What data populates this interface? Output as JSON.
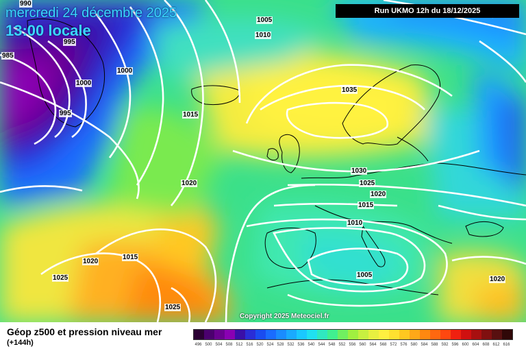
{
  "header": {
    "date": "mercredi 24 décembre 2025",
    "time": "13:00 locale",
    "run": "Run UKMO 12h du 18/12/2025"
  },
  "copyright": "Copyright 2025 Meteociel.fr",
  "footer": {
    "title": "Géop z500 et pression niveau mer",
    "subtitle": "(+144h)"
  },
  "isobar_labels": [
    "990",
    "995",
    "985",
    "1000",
    "995",
    "1000",
    "1005",
    "1010",
    "1015",
    "1035",
    "1020",
    "1030",
    "1025",
    "1020",
    "1015",
    "1010",
    "1020",
    "1015",
    "1025",
    "1005",
    "1025",
    "1020"
  ],
  "legend": {
    "values": [
      "496",
      "500",
      "504",
      "508",
      "512",
      "516",
      "520",
      "524",
      "528",
      "532",
      "536",
      "540",
      "544",
      "548",
      "552",
      "556",
      "560",
      "564",
      "568",
      "572",
      "576",
      "580",
      "584",
      "588",
      "592",
      "596",
      "600",
      "604",
      "608",
      "612",
      "616"
    ],
    "colors": [
      "#2b0033",
      "#4b006e",
      "#6a0090",
      "#8a00b3",
      "#3a0fa8",
      "#2a2dd6",
      "#1a4cf0",
      "#1a6cff",
      "#1a8cff",
      "#1aaaff",
      "#1ac8ff",
      "#20e0f0",
      "#30e8c0",
      "#40f090",
      "#70f060",
      "#a0f040",
      "#c8f040",
      "#e8f040",
      "#fff040",
      "#ffe030",
      "#ffc820",
      "#ffa818",
      "#ff8810",
      "#ff6810",
      "#ff4810",
      "#f02010",
      "#d01010",
      "#a81010",
      "#801010",
      "#581010",
      "#300808"
    ]
  },
  "colors": {
    "isobar": "#ffffff",
    "coast": "#000000",
    "accent_text": "#3ad6ff"
  }
}
